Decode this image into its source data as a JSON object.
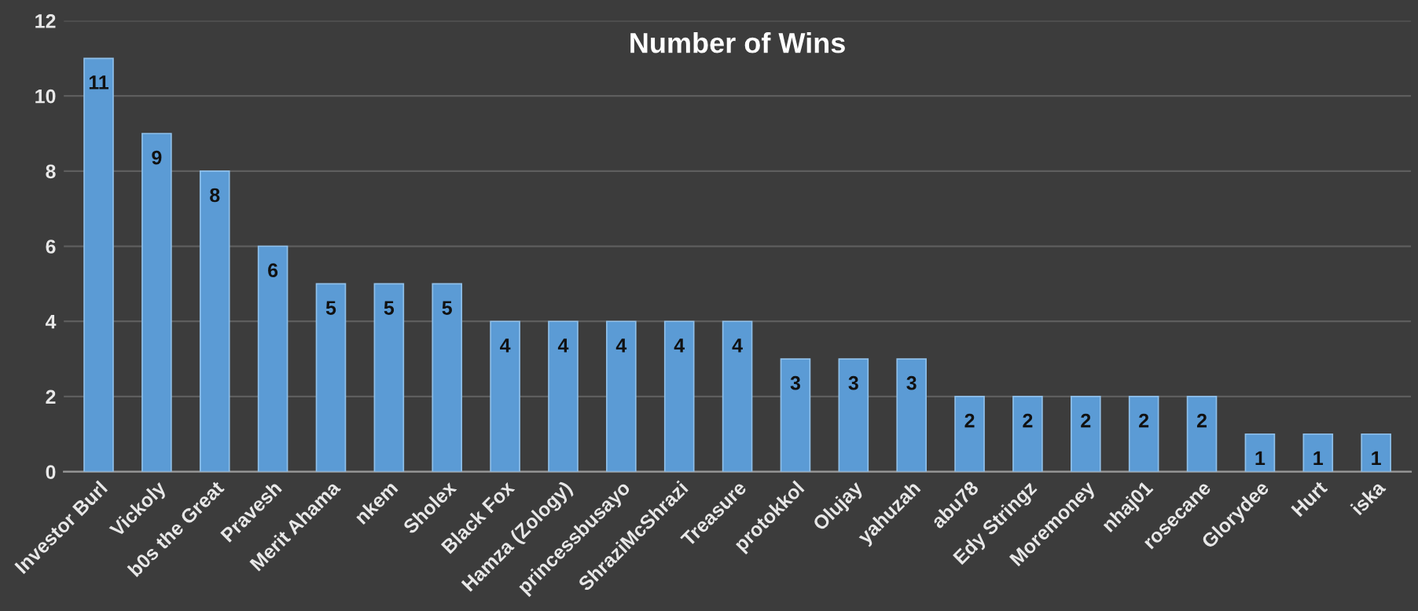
{
  "chart_data": {
    "type": "bar",
    "title": "Number of Wins",
    "categories": [
      "Investor Burl",
      "Vickoly",
      "b0s the Great",
      "Pravesh",
      "Merit Ahama",
      "nkem",
      "Sholex",
      "Black Fox",
      "Hamza (Zology)",
      "princessbusayo",
      "ShraziMcShrazi",
      "Treasure",
      "protokkol",
      "Olujay",
      "yahuzah",
      "abu78",
      "Edy Stringz",
      "Moremoney",
      "nhaj01",
      "rosecane",
      "Glorydee",
      "Hurt",
      "iska"
    ],
    "values": [
      11,
      9,
      8,
      6,
      5,
      5,
      5,
      4,
      4,
      4,
      4,
      4,
      3,
      3,
      3,
      2,
      2,
      2,
      2,
      2,
      1,
      1,
      1
    ],
    "color": "#5b9bd5",
    "ylim": [
      0,
      12
    ],
    "yticks": [
      0,
      2,
      4,
      6,
      8,
      10,
      12
    ],
    "grid": "y",
    "data_labels": true
  }
}
